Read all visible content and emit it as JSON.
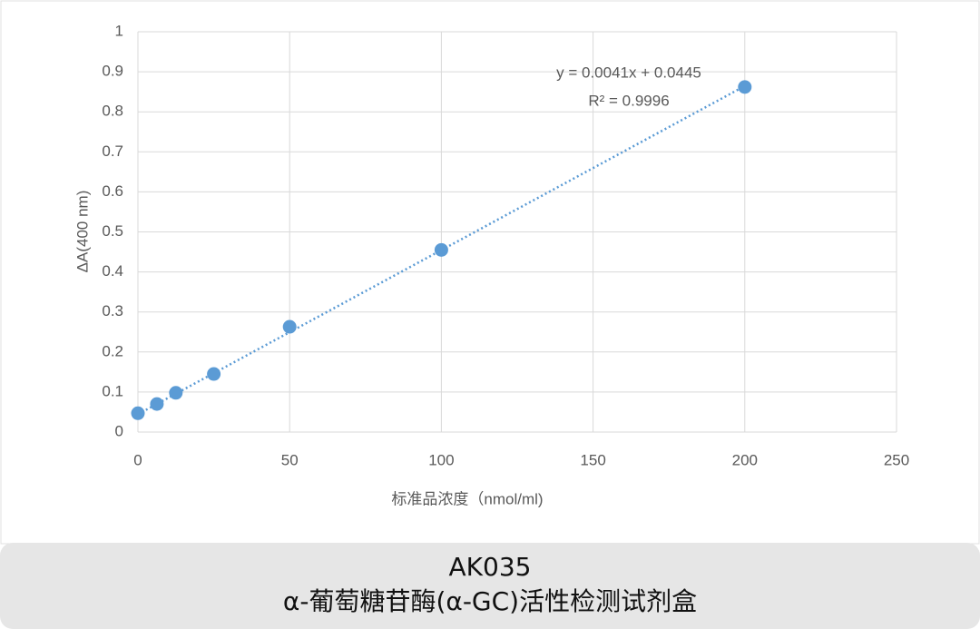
{
  "chart_data": {
    "type": "scatter",
    "x_label": "标准品浓度（nmol/ml)",
    "y_label": "ΔA(400 nm)",
    "x": [
      0,
      6.25,
      12.5,
      25,
      50,
      100,
      200
    ],
    "series": [
      {
        "name": "ΔA",
        "color": "#5b9bd5",
        "values": [
          0.047,
          0.07,
          0.098,
          0.145,
          0.263,
          0.455,
          0.862
        ]
      }
    ],
    "trendline": {
      "equation": "y = 0.0041x + 0.0445",
      "r2": "R² = 0.9996",
      "slope": 0.0041,
      "intercept": 0.0445
    },
    "xlim": [
      0,
      250
    ],
    "xticks": [
      0,
      50,
      100,
      150,
      200,
      250
    ],
    "ylim": [
      0,
      1
    ],
    "yticks": [
      0,
      0.1,
      0.2,
      0.3,
      0.4,
      0.5,
      0.6,
      0.7,
      0.8,
      0.9,
      1
    ],
    "grid": true
  },
  "caption": {
    "code": "AK035",
    "title": "α-葡萄糖苷酶(α-GC)活性检测试剂盒"
  }
}
